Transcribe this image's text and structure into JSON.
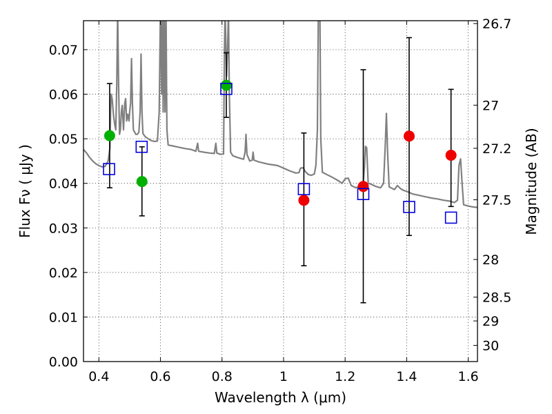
{
  "chart_data": {
    "type": "scatter",
    "xlabel": "Wavelength  λ (μm)",
    "ylabel": "Flux  Fν  ( μJy )",
    "y2label": "Magnitude (AB)",
    "xlim": [
      0.35,
      1.63
    ],
    "ylim": [
      0.0,
      0.0765
    ],
    "grid": true,
    "x_ticks": [
      0.4,
      0.6,
      0.8,
      1.0,
      1.2,
      1.4,
      1.6
    ],
    "x_tick_labels": [
      "0.4",
      "0.6",
      "0.8",
      "1",
      "1.2",
      "1.4",
      "1.6"
    ],
    "y_ticks": [
      0.0,
      0.01,
      0.02,
      0.03,
      0.04,
      0.05,
      0.06,
      0.07
    ],
    "y_tick_labels": [
      "0.00",
      "0.01",
      "0.02",
      "0.03",
      "0.04",
      "0.05",
      "0.06",
      "0.07"
    ],
    "mag_ticks": [
      {
        "label": "26.7",
        "mag": 26.7
      },
      {
        "label": "27",
        "mag": 27.0
      },
      {
        "label": "27.2",
        "mag": 27.2
      },
      {
        "label": "27.5",
        "mag": 27.5
      },
      {
        "label": "28",
        "mag": 28.0
      },
      {
        "label": "28.5",
        "mag": 28.5
      },
      {
        "label": "29",
        "mag": 29.0
      },
      {
        "label": "30",
        "mag": 30.0
      }
    ],
    "colors": {
      "green": "#00b000",
      "red": "#ee0000",
      "model_box": "#0000dd",
      "spectrum": "#808080",
      "error_bar": "#000000"
    },
    "series": [
      {
        "name": "observed-green",
        "marker": "circle",
        "color": "#00b000",
        "points": [
          {
            "x": 0.435,
            "y": 0.0507
          },
          {
            "x": 0.54,
            "y": 0.0404
          },
          {
            "x": 0.814,
            "y": 0.062
          }
        ]
      },
      {
        "name": "observed-red",
        "marker": "circle",
        "color": "#ee0000",
        "points": [
          {
            "x": 1.066,
            "y": 0.0362
          },
          {
            "x": 1.259,
            "y": 0.0393
          },
          {
            "x": 1.408,
            "y": 0.0506
          },
          {
            "x": 1.544,
            "y": 0.0463
          }
        ]
      },
      {
        "name": "model-photometry",
        "marker": "open-square",
        "color": "#0000dd",
        "points": [
          {
            "x": 0.433,
            "y": 0.0432
          },
          {
            "x": 0.539,
            "y": 0.0482
          },
          {
            "x": 0.814,
            "y": 0.0612
          },
          {
            "x": 1.066,
            "y": 0.0387
          },
          {
            "x": 1.259,
            "y": 0.0376
          },
          {
            "x": 1.408,
            "y": 0.0347
          },
          {
            "x": 1.544,
            "y": 0.0323
          }
        ]
      }
    ],
    "error_bars": [
      {
        "x": 0.435,
        "low": 0.039,
        "high": 0.0624
      },
      {
        "x": 0.54,
        "low": 0.0327,
        "high": 0.0482
      },
      {
        "x": 0.814,
        "low": 0.0548,
        "high": 0.0693
      },
      {
        "x": 1.066,
        "low": 0.0215,
        "high": 0.0513
      },
      {
        "x": 1.259,
        "low": 0.0132,
        "high": 0.0655
      },
      {
        "x": 1.408,
        "low": 0.0283,
        "high": 0.0727
      },
      {
        "x": 1.544,
        "low": 0.0348,
        "high": 0.0611
      }
    ],
    "spectrum": [
      [
        0.35,
        0.0476
      ],
      [
        0.36,
        0.0468
      ],
      [
        0.37,
        0.0458
      ],
      [
        0.38,
        0.045
      ],
      [
        0.39,
        0.0444
      ],
      [
        0.4,
        0.044
      ],
      [
        0.41,
        0.0437
      ],
      [
        0.42,
        0.0438
      ],
      [
        0.43,
        0.045
      ],
      [
        0.436,
        0.048
      ],
      [
        0.438,
        0.056
      ],
      [
        0.44,
        0.06
      ],
      [
        0.443,
        0.059
      ],
      [
        0.448,
        0.055
      ],
      [
        0.452,
        0.053
      ],
      [
        0.455,
        0.052
      ],
      [
        0.458,
        0.062
      ],
      [
        0.461,
        0.079
      ],
      [
        0.464,
        0.062
      ],
      [
        0.467,
        0.051
      ],
      [
        0.47,
        0.052
      ],
      [
        0.473,
        0.056
      ],
      [
        0.476,
        0.0575
      ],
      [
        0.48,
        0.052
      ],
      [
        0.484,
        0.058
      ],
      [
        0.487,
        0.059
      ],
      [
        0.49,
        0.054
      ],
      [
        0.494,
        0.0555
      ],
      [
        0.498,
        0.054
      ],
      [
        0.5,
        0.056
      ],
      [
        0.503,
        0.058
      ],
      [
        0.506,
        0.068
      ],
      [
        0.509,
        0.058
      ],
      [
        0.512,
        0.052
      ],
      [
        0.516,
        0.0515
      ],
      [
        0.52,
        0.051
      ],
      [
        0.525,
        0.051
      ],
      [
        0.53,
        0.0515
      ],
      [
        0.534,
        0.056
      ],
      [
        0.537,
        0.069
      ],
      [
        0.54,
        0.056
      ],
      [
        0.543,
        0.0512
      ],
      [
        0.55,
        0.0505
      ],
      [
        0.56,
        0.05
      ],
      [
        0.57,
        0.0496
      ],
      [
        0.58,
        0.0494
      ],
      [
        0.59,
        0.0495
      ],
      [
        0.596,
        0.056
      ],
      [
        0.6,
        0.079
      ],
      [
        0.604,
        0.06
      ],
      [
        0.606,
        0.079
      ],
      [
        0.609,
        0.056
      ],
      [
        0.612,
        0.079
      ],
      [
        0.615,
        0.056
      ],
      [
        0.618,
        0.079
      ],
      [
        0.621,
        0.052
      ],
      [
        0.625,
        0.0486
      ],
      [
        0.64,
        0.0484
      ],
      [
        0.66,
        0.0481
      ],
      [
        0.68,
        0.0478
      ],
      [
        0.7,
        0.0476
      ],
      [
        0.715,
        0.0472
      ],
      [
        0.721,
        0.049
      ],
      [
        0.724,
        0.0472
      ],
      [
        0.74,
        0.047
      ],
      [
        0.76,
        0.0468
      ],
      [
        0.775,
        0.0467
      ],
      [
        0.78,
        0.049
      ],
      [
        0.783,
        0.0468
      ],
      [
        0.795,
        0.0465
      ],
      [
        0.805,
        0.0466
      ],
      [
        0.808,
        0.07
      ],
      [
        0.81,
        0.079
      ],
      [
        0.813,
        0.07
      ],
      [
        0.815,
        0.064
      ],
      [
        0.818,
        0.07
      ],
      [
        0.821,
        0.079
      ],
      [
        0.824,
        0.06
      ],
      [
        0.828,
        0.047
      ],
      [
        0.835,
        0.0462
      ],
      [
        0.85,
        0.0458
      ],
      [
        0.87,
        0.0454
      ],
      [
        0.875,
        0.047
      ],
      [
        0.878,
        0.051
      ],
      [
        0.881,
        0.0465
      ],
      [
        0.89,
        0.045
      ],
      [
        0.898,
        0.0452
      ],
      [
        0.901,
        0.047
      ],
      [
        0.904,
        0.0452
      ],
      [
        0.92,
        0.0448
      ],
      [
        0.95,
        0.0443
      ],
      [
        0.98,
        0.044
      ],
      [
        1.0,
        0.0434
      ],
      [
        1.02,
        0.0428
      ],
      [
        1.04,
        0.0423
      ],
      [
        1.05,
        0.0424
      ],
      [
        1.055,
        0.0434
      ],
      [
        1.064,
        0.0435
      ],
      [
        1.07,
        0.0427
      ],
      [
        1.08,
        0.042
      ],
      [
        1.09,
        0.0418
      ],
      [
        1.1,
        0.0421
      ],
      [
        1.105,
        0.044
      ],
      [
        1.11,
        0.052
      ],
      [
        1.113,
        0.079
      ],
      [
        1.118,
        0.079
      ],
      [
        1.121,
        0.05
      ],
      [
        1.126,
        0.0425
      ],
      [
        1.14,
        0.042
      ],
      [
        1.16,
        0.0413
      ],
      [
        1.18,
        0.0405
      ],
      [
        1.19,
        0.04
      ],
      [
        1.2,
        0.041
      ],
      [
        1.21,
        0.0412
      ],
      [
        1.22,
        0.0395
      ],
      [
        1.235,
        0.039
      ],
      [
        1.25,
        0.0395
      ],
      [
        1.258,
        0.039
      ],
      [
        1.263,
        0.044
      ],
      [
        1.266,
        0.0483
      ],
      [
        1.27,
        0.048
      ],
      [
        1.275,
        0.04
      ],
      [
        1.285,
        0.0398
      ],
      [
        1.3,
        0.0393
      ],
      [
        1.315,
        0.039
      ],
      [
        1.325,
        0.04
      ],
      [
        1.33,
        0.048
      ],
      [
        1.334,
        0.0557
      ],
      [
        1.338,
        0.047
      ],
      [
        1.343,
        0.0392
      ],
      [
        1.36,
        0.0386
      ],
      [
        1.37,
        0.0395
      ],
      [
        1.38,
        0.0388
      ],
      [
        1.39,
        0.0384
      ],
      [
        1.4,
        0.0382
      ],
      [
        1.42,
        0.0376
      ],
      [
        1.44,
        0.0373
      ],
      [
        1.46,
        0.037
      ],
      [
        1.48,
        0.0367
      ],
      [
        1.5,
        0.0365
      ],
      [
        1.52,
        0.0362
      ],
      [
        1.54,
        0.036
      ],
      [
        1.555,
        0.0357
      ],
      [
        1.565,
        0.0362
      ],
      [
        1.57,
        0.044
      ],
      [
        1.575,
        0.0455
      ],
      [
        1.58,
        0.04
      ],
      [
        1.585,
        0.0352
      ],
      [
        1.6,
        0.0349
      ],
      [
        1.615,
        0.0347
      ],
      [
        1.63,
        0.0346
      ]
    ]
  }
}
